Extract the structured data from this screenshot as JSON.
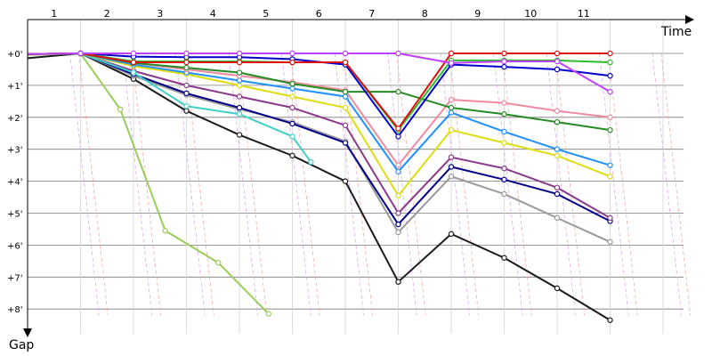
{
  "chart_data": {
    "type": "line",
    "x_axis_title": "Time",
    "y_axis_title": "Gap",
    "lap_labels": [
      "1",
      "2",
      "3",
      "4",
      "5",
      "6",
      "7",
      "8",
      "9",
      "10",
      "11"
    ],
    "gap_labels": [
      "+0'",
      "+1'",
      "+2'",
      "+3'",
      "+4'",
      "+5'",
      "+6'",
      "+7'",
      "+8'"
    ],
    "ylim": [
      0,
      8.5
    ],
    "series": [
      {
        "color": "#1a1a1a",
        "points": [
          [
            0,
            0.15
          ],
          [
            1,
            0.0
          ],
          [
            2,
            0.8
          ],
          [
            3,
            1.8
          ],
          [
            4,
            2.55
          ],
          [
            5,
            3.2
          ],
          [
            6,
            4.0
          ],
          [
            7,
            7.15
          ],
          [
            8,
            5.65
          ],
          [
            9,
            6.4
          ],
          [
            10,
            7.35
          ],
          [
            11,
            8.35
          ]
        ]
      },
      {
        "color": "#9acd5a",
        "points": [
          [
            0,
            0.05
          ],
          [
            1,
            0.0
          ],
          [
            1.75,
            1.75
          ],
          [
            2.6,
            5.55
          ],
          [
            3.6,
            6.55
          ],
          [
            4.55,
            8.15
          ]
        ]
      },
      {
        "color": "#999999",
        "points": [
          [
            0,
            0.02
          ],
          [
            1,
            0.0
          ],
          [
            2,
            0.7
          ],
          [
            3,
            1.3
          ],
          [
            4,
            1.75
          ],
          [
            5,
            2.15
          ],
          [
            6,
            2.75
          ],
          [
            7,
            5.6
          ],
          [
            8,
            3.85
          ],
          [
            9,
            4.4
          ],
          [
            10,
            5.15
          ],
          [
            11,
            5.9
          ]
        ]
      },
      {
        "color": "#00008b",
        "points": [
          [
            0,
            0.02
          ],
          [
            1,
            0.0
          ],
          [
            2,
            0.65
          ],
          [
            3,
            1.25
          ],
          [
            4,
            1.7
          ],
          [
            5,
            2.2
          ],
          [
            6,
            2.8
          ],
          [
            7,
            5.35
          ],
          [
            8,
            3.55
          ],
          [
            9,
            3.95
          ],
          [
            10,
            4.4
          ],
          [
            11,
            5.25
          ]
        ]
      },
      {
        "color": "#8b3a8b",
        "points": [
          [
            0,
            0.02
          ],
          [
            1,
            0.0
          ],
          [
            2,
            0.55
          ],
          [
            3,
            1.0
          ],
          [
            4,
            1.35
          ],
          [
            5,
            1.7
          ],
          [
            6,
            2.25
          ],
          [
            7,
            5.0
          ],
          [
            8,
            3.25
          ],
          [
            9,
            3.6
          ],
          [
            10,
            4.2
          ],
          [
            11,
            5.15
          ]
        ]
      },
      {
        "color": "#40d0c8",
        "points": [
          [
            0,
            0.02
          ],
          [
            1,
            0.0
          ],
          [
            2,
            0.6
          ],
          [
            3,
            1.65
          ],
          [
            4,
            1.9
          ],
          [
            5,
            2.6
          ],
          [
            5.35,
            3.4
          ]
        ]
      },
      {
        "color": "#dddd10",
        "points": [
          [
            0,
            0.02
          ],
          [
            1,
            0.0
          ],
          [
            2,
            0.4
          ],
          [
            3,
            0.65
          ],
          [
            4,
            1.0
          ],
          [
            5,
            1.35
          ],
          [
            6,
            1.7
          ],
          [
            7,
            4.45
          ],
          [
            8,
            2.4
          ],
          [
            9,
            2.8
          ],
          [
            10,
            3.2
          ],
          [
            11,
            3.85
          ]
        ]
      },
      {
        "color": "#1e90ff",
        "points": [
          [
            0,
            0.02
          ],
          [
            1,
            0.0
          ],
          [
            2,
            0.35
          ],
          [
            3,
            0.6
          ],
          [
            4,
            0.85
          ],
          [
            5,
            1.1
          ],
          [
            6,
            1.35
          ],
          [
            7,
            3.7
          ],
          [
            8,
            1.85
          ],
          [
            9,
            2.45
          ],
          [
            10,
            3.0
          ],
          [
            11,
            3.5
          ]
        ]
      },
      {
        "color": "#f08aa0",
        "points": [
          [
            0,
            0.02
          ],
          [
            1,
            0.0
          ],
          [
            2,
            0.3
          ],
          [
            3,
            0.5
          ],
          [
            4,
            0.7
          ],
          [
            5,
            0.9
          ],
          [
            6,
            1.15
          ],
          [
            7,
            3.5
          ],
          [
            8,
            1.45
          ],
          [
            9,
            1.55
          ],
          [
            10,
            1.8
          ],
          [
            11,
            2.0
          ]
        ]
      },
      {
        "color": "#228b22",
        "points": [
          [
            0,
            0.02
          ],
          [
            1,
            0.0
          ],
          [
            2,
            0.3
          ],
          [
            3,
            0.45
          ],
          [
            4,
            0.6
          ],
          [
            5,
            0.95
          ],
          [
            6,
            1.2
          ],
          [
            7,
            1.2
          ],
          [
            8,
            1.7
          ],
          [
            9,
            1.9
          ],
          [
            10,
            2.15
          ],
          [
            11,
            2.4
          ]
        ]
      },
      {
        "color": "#0000cd",
        "points": [
          [
            0,
            0.02
          ],
          [
            1,
            0.0
          ],
          [
            2,
            0.1
          ],
          [
            3,
            0.12
          ],
          [
            4,
            0.12
          ],
          [
            5,
            0.18
          ],
          [
            6,
            0.35
          ],
          [
            7,
            2.6
          ],
          [
            8,
            0.35
          ],
          [
            9,
            0.42
          ],
          [
            10,
            0.5
          ],
          [
            11,
            0.7
          ]
        ]
      },
      {
        "color": "#2ebd2e",
        "points": [
          [
            0,
            0.02
          ],
          [
            1,
            0.0
          ],
          [
            2,
            0.25
          ],
          [
            3,
            0.25
          ],
          [
            4,
            0.25
          ],
          [
            5,
            0.28
          ],
          [
            6,
            0.28
          ],
          [
            7,
            2.4
          ],
          [
            8,
            0.22
          ],
          [
            9,
            0.22
          ],
          [
            10,
            0.22
          ],
          [
            11,
            0.28
          ]
        ]
      },
      {
        "color": "#dd1111",
        "points": [
          [
            0,
            0.02
          ],
          [
            1,
            0.0
          ],
          [
            2,
            0.28
          ],
          [
            3,
            0.28
          ],
          [
            4,
            0.28
          ],
          [
            5,
            0.28
          ],
          [
            6,
            0.28
          ],
          [
            7,
            2.35
          ],
          [
            8,
            0.0
          ],
          [
            9,
            0.0
          ],
          [
            10,
            0.0
          ],
          [
            11,
            0.0
          ]
        ]
      },
      {
        "color": "#bf40ff",
        "points": [
          [
            0,
            0.02
          ],
          [
            1,
            0.0
          ],
          [
            2,
            0.0
          ],
          [
            3,
            0.0
          ],
          [
            4,
            0.0
          ],
          [
            5,
            0.0
          ],
          [
            6,
            0.0
          ],
          [
            7,
            0.0
          ],
          [
            8,
            0.3
          ],
          [
            9,
            0.25
          ],
          [
            10,
            0.25
          ],
          [
            11,
            1.2
          ]
        ]
      }
    ]
  }
}
